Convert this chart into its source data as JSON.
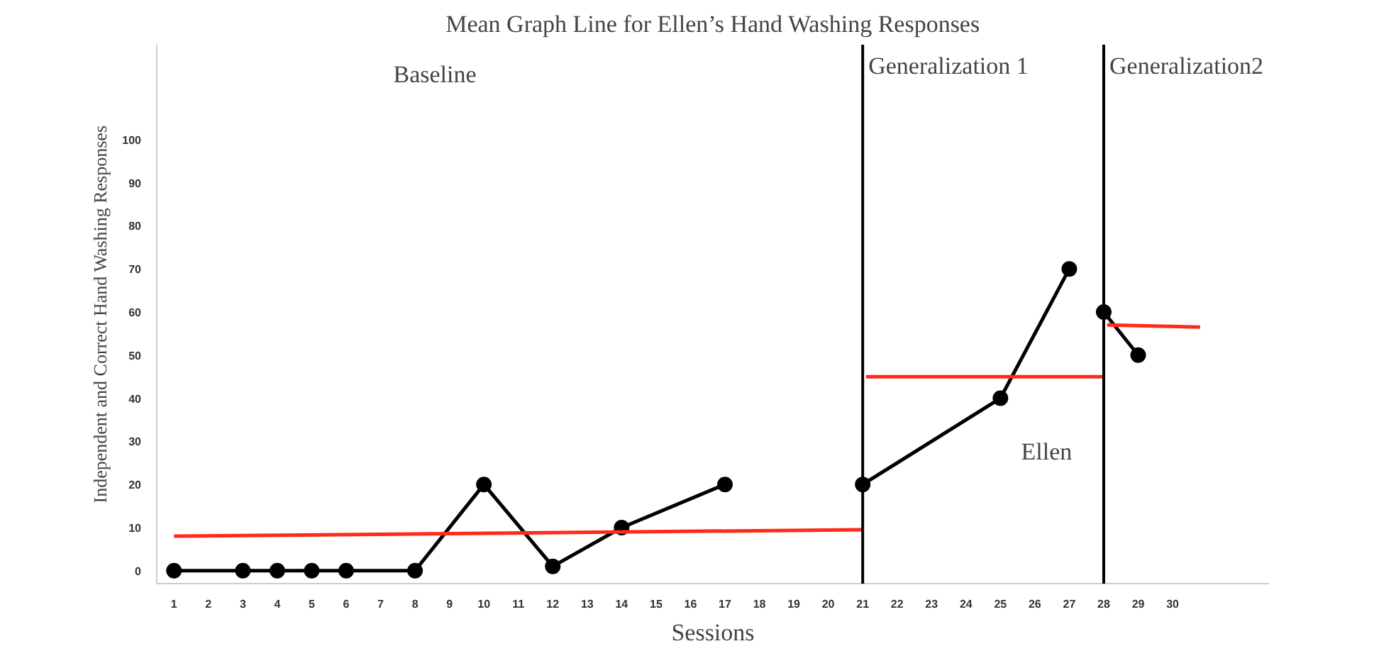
{
  "chart_data": {
    "type": "line",
    "title": "Mean Graph Line for Ellen’s Hand Washing Responses",
    "xlabel": "Sessions",
    "ylabel": "Independent and Correct Hand Washing Responses",
    "x": [
      1,
      3,
      4,
      5,
      6,
      8,
      10,
      12,
      14,
      17,
      null,
      21,
      25,
      27,
      null,
      28,
      29
    ],
    "series": [
      {
        "color": "#000000",
        "marker": "circle",
        "values": [
          0,
          0,
          0,
          0,
          0,
          0,
          20,
          1,
          10,
          20,
          null,
          20,
          40,
          70,
          null,
          60,
          50
        ]
      },
      {
        "color": "#ff2a1a",
        "marker": "none",
        "x": [
          1,
          21
        ],
        "values": [
          8,
          9.5
        ]
      },
      {
        "color": "#ff2a1a",
        "marker": "none",
        "x": [
          21.1,
          28
        ],
        "values": [
          45,
          45
        ]
      },
      {
        "color": "#ff2a1a",
        "marker": "none",
        "x": [
          28.1,
          30.8
        ],
        "values": [
          57,
          56.5
        ]
      }
    ],
    "xlim": [
      0.5,
      32.8
    ],
    "ylim": [
      -3,
      122
    ],
    "xticks": [
      1,
      2,
      3,
      4,
      5,
      6,
      7,
      8,
      9,
      10,
      11,
      12,
      13,
      14,
      15,
      16,
      17,
      18,
      19,
      20,
      21,
      22,
      23,
      24,
      25,
      26,
      27,
      28,
      29,
      30
    ],
    "yticks": [
      0,
      10,
      20,
      30,
      40,
      50,
      60,
      70,
      80,
      90,
      100
    ],
    "ref_lines": [
      {
        "axis": "x",
        "value": 21,
        "color": "#000000",
        "label": "Generalization 1"
      },
      {
        "axis": "x",
        "value": 28,
        "color": "#000000",
        "label": "Generalization2"
      }
    ],
    "annotations": [
      "Baseline",
      "Ellen"
    ],
    "grid": false
  }
}
